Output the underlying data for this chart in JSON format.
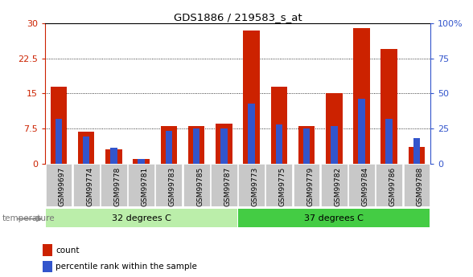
{
  "title": "GDS1886 / 219583_s_at",
  "categories": [
    "GSM99697",
    "GSM99774",
    "GSM99778",
    "GSM99781",
    "GSM99783",
    "GSM99785",
    "GSM99787",
    "GSM99773",
    "GSM99775",
    "GSM99779",
    "GSM99782",
    "GSM99784",
    "GSM99786",
    "GSM99788"
  ],
  "count_values": [
    16.5,
    6.8,
    3.0,
    0.9,
    8.0,
    8.0,
    8.5,
    28.5,
    16.5,
    8.0,
    15.0,
    29.0,
    24.5,
    3.5
  ],
  "percentile_values": [
    32,
    19,
    11,
    3,
    23,
    25,
    25,
    43,
    28,
    25,
    27,
    46,
    32,
    18
  ],
  "count_color": "#cc2200",
  "percentile_color": "#3355cc",
  "tick_bg_color": "#c8c8c8",
  "group1_label": "32 degrees C",
  "group2_label": "37 degrees C",
  "group1_color": "#bbeeaa",
  "group2_color": "#44cc44",
  "temp_label": "temperature",
  "legend_count": "count",
  "legend_percentile": "percentile rank within the sample",
  "ylim_left": [
    0,
    30
  ],
  "yticks_left": [
    0,
    7.5,
    15,
    22.5,
    30
  ],
  "ytick_labels_left": [
    "0",
    "7.5",
    "15",
    "22.5",
    "30"
  ],
  "ylim_right": [
    0,
    100
  ],
  "yticks_right": [
    0,
    25,
    50,
    75,
    100
  ],
  "ytick_labels_right": [
    "0",
    "25",
    "50",
    "75",
    "100%"
  ],
  "bar_width": 0.6,
  "blue_bar_width": 0.25
}
